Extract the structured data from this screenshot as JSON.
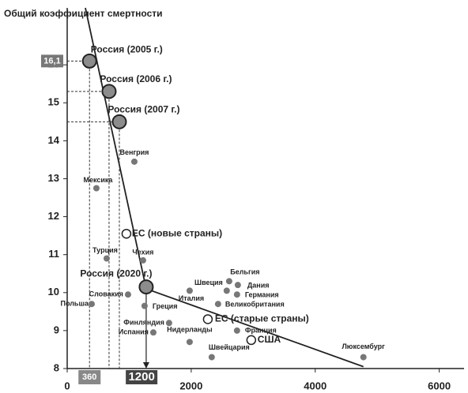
{
  "chart_data": {
    "type": "scatter",
    "title": "Общий коэффициент смертности",
    "xlim": [
      0,
      6400
    ],
    "ylim": [
      8,
      17.5
    ],
    "xticks": [
      0,
      2000,
      4000,
      6000
    ],
    "yticks": [
      8,
      9,
      10,
      11,
      12,
      13,
      14,
      15,
      16
    ],
    "x_markers": [
      {
        "value": 360,
        "label": "360"
      },
      {
        "value": 1200,
        "label": "1200"
      }
    ],
    "y_markers": [
      {
        "value": 16.1,
        "label": "16,1"
      }
    ],
    "trend_line": {
      "x": [
        293,
        1274,
        4777
      ],
      "y": [
        17.5,
        10.1,
        8.05
      ]
    },
    "points": {
      "labels": [
        "Россия (2005 г.)",
        "Россия (2006 г.)",
        "Россия (2007 г.)",
        "Венгрия",
        "Мексика",
        "ЕС (новые страны)",
        "Турция",
        "Чехия",
        "Россия (2020 г.)",
        "Словакия",
        "Польша",
        "Греция",
        "Италия",
        "Швеция",
        "Бельгия",
        "Дания",
        "Германия",
        "Великобритания",
        "Финляндия",
        "ЕС (старые страны)",
        "Испания",
        "Нидерланды",
        "Франция",
        "США",
        "Швейцария",
        "Люксембург"
      ],
      "x": [
        360,
        675,
        841,
        1083,
        471,
        955,
        637,
        1223,
        1274,
        981,
        395,
        1248,
        1975,
        2573,
        2612,
        2752,
        2739,
        2433,
        1643,
        2268,
        1389,
        1975,
        2739,
        2968,
        2331,
        4777
      ],
      "y": [
        16.1,
        15.3,
        14.5,
        13.45,
        12.75,
        11.55,
        10.9,
        10.85,
        10.15,
        9.95,
        9.7,
        9.65,
        10.05,
        10.05,
        10.3,
        10.2,
        9.95,
        9.7,
        9.2,
        9.3,
        8.95,
        8.7,
        9.0,
        8.75,
        8.3,
        8.3
      ],
      "style": [
        "large",
        "large",
        "large",
        "small",
        "small",
        "open",
        "small",
        "small",
        "large",
        "small",
        "small",
        "small",
        "small",
        "small",
        "small",
        "small",
        "small",
        "small",
        "small",
        "open",
        "small",
        "small",
        "small",
        "open",
        "small",
        "small"
      ]
    }
  }
}
